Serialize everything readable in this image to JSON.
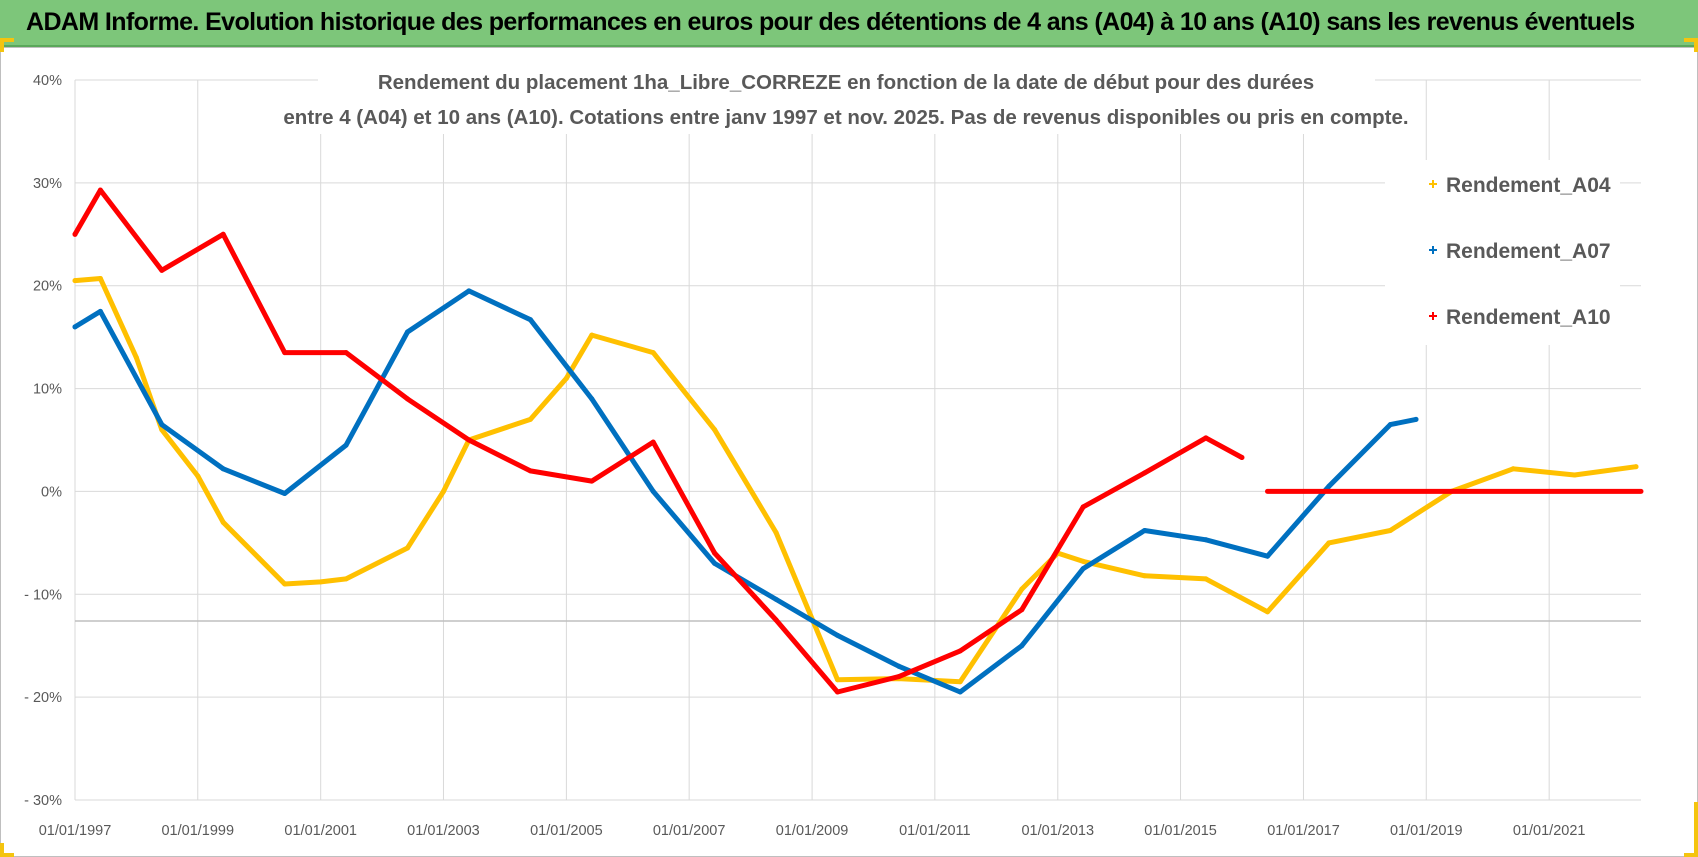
{
  "banner": {
    "title": "ADAM Informe. Evolution historique des performances en euros pour des détentions de 4 ans (A04) à 10 ans (A10) sans les revenus éventuels"
  },
  "colors": {
    "banner_bg": "#7dc67a",
    "A04": "#ffc000",
    "A07": "#0070c0",
    "A10": "#ff0000",
    "grid": "#d9d9d9",
    "accent_corners": "#f4c40f"
  },
  "chart_data": {
    "type": "line",
    "title_lines": [
      "Rendement du placement 1ha_Libre_CORREZE en fonction de la date de début pour des durées",
      "entre 4 (A04) et 10 ans (A10). Cotations entre janv 1997 et nov. 2025. Pas de revenus disponibles ou pris en compte."
    ],
    "xlabel": "",
    "ylabel": "",
    "x_range": [
      "1997-01-01",
      "2022-07-01"
    ],
    "x_ticks": [
      "01/01/1997",
      "01/01/1999",
      "01/01/2001",
      "01/01/2003",
      "01/01/2005",
      "01/01/2007",
      "01/01/2009",
      "01/01/2011",
      "01/01/2013",
      "01/01/2015",
      "01/01/2017",
      "01/01/2019",
      "01/01/2021"
    ],
    "y_range": [
      -30,
      40
    ],
    "y_ticks": [
      {
        "value": 40,
        "label": "40%"
      },
      {
        "value": 30,
        "label": "30%"
      },
      {
        "value": 20,
        "label": "20%"
      },
      {
        "value": 10,
        "label": "10%"
      },
      {
        "value": 0,
        "label": "0%"
      },
      {
        "value": -10,
        "label": "- 10%"
      },
      {
        "value": -20,
        "label": "- 20%"
      },
      {
        "value": -30,
        "label": "- 30%"
      }
    ],
    "grid": true,
    "legend_position": "top-right",
    "series": [
      {
        "name": "Rendement_A04",
        "points": [
          [
            "1997-01-01",
            20.5
          ],
          [
            "1997-06-01",
            20.7
          ],
          [
            "1998-01-01",
            13.0
          ],
          [
            "1998-06-01",
            6.0
          ],
          [
            "1999-01-01",
            1.5
          ],
          [
            "1999-06-01",
            -3.0
          ],
          [
            "2000-01-01",
            -6.5
          ],
          [
            "2000-06-01",
            -9.0
          ],
          [
            "2001-01-01",
            -8.8
          ],
          [
            "2001-06-01",
            -8.5
          ],
          [
            "2002-06-01",
            -5.5
          ],
          [
            "2003-01-01",
            0.0
          ],
          [
            "2003-06-01",
            5.0
          ],
          [
            "2004-06-01",
            7.0
          ],
          [
            "2005-01-01",
            11.0
          ],
          [
            "2005-06-01",
            15.2
          ],
          [
            "2006-06-01",
            13.5
          ],
          [
            "2007-06-01",
            6.0
          ],
          [
            "2008-06-01",
            -4.0
          ],
          [
            "2009-06-01",
            -18.3
          ],
          [
            "2010-06-01",
            -18.2
          ],
          [
            "2011-06-01",
            -18.5
          ],
          [
            "2012-06-01",
            -9.5
          ],
          [
            "2013-01-01",
            -6.0
          ],
          [
            "2013-06-01",
            -6.8
          ],
          [
            "2014-06-01",
            -8.2
          ],
          [
            "2015-06-01",
            -8.5
          ],
          [
            "2016-06-01",
            -11.7
          ],
          [
            "2017-06-01",
            -5.0
          ],
          [
            "2018-06-01",
            -3.8
          ],
          [
            "2019-06-01",
            0.0
          ],
          [
            "2020-06-01",
            2.2
          ],
          [
            "2021-06-01",
            1.6
          ],
          [
            "2022-06-01",
            2.4
          ]
        ]
      },
      {
        "name": "Rendement_A07",
        "points": [
          [
            "1997-01-01",
            16.0
          ],
          [
            "1997-06-01",
            17.5
          ],
          [
            "1998-06-01",
            6.5
          ],
          [
            "1999-06-01",
            2.2
          ],
          [
            "2000-06-01",
            -0.2
          ],
          [
            "2001-06-01",
            4.5
          ],
          [
            "2002-06-01",
            15.5
          ],
          [
            "2003-06-01",
            19.5
          ],
          [
            "2004-06-01",
            16.7
          ],
          [
            "2005-06-01",
            9.0
          ],
          [
            "2006-06-01",
            0.0
          ],
          [
            "2007-06-01",
            -7.0
          ],
          [
            "2008-06-01",
            -10.5
          ],
          [
            "2009-06-01",
            -14.0
          ],
          [
            "2010-06-01",
            -17.0
          ],
          [
            "2011-06-01",
            -19.5
          ],
          [
            "2012-06-01",
            -15.0
          ],
          [
            "2013-06-01",
            -7.5
          ],
          [
            "2014-06-01",
            -3.8
          ],
          [
            "2015-06-01",
            -4.7
          ],
          [
            "2016-06-01",
            -6.3
          ],
          [
            "2017-06-01",
            0.5
          ],
          [
            "2018-06-01",
            6.5
          ],
          [
            "2018-11-01",
            7.0
          ]
        ]
      },
      {
        "name": "Rendement_A10",
        "points": [
          [
            "1997-01-01",
            25.0
          ],
          [
            "1997-06-01",
            29.3
          ],
          [
            "1998-06-01",
            21.5
          ],
          [
            "1999-06-01",
            25.0
          ],
          [
            "2000-06-01",
            13.5
          ],
          [
            "2001-06-01",
            13.5
          ],
          [
            "2002-06-01",
            9.0
          ],
          [
            "2003-06-01",
            5.0
          ],
          [
            "2004-06-01",
            2.0
          ],
          [
            "2005-06-01",
            1.0
          ],
          [
            "2006-06-01",
            4.8
          ],
          [
            "2007-06-01",
            -6.0
          ],
          [
            "2008-06-01",
            -12.5
          ],
          [
            "2009-06-01",
            -19.5
          ],
          [
            "2010-06-01",
            -18.0
          ],
          [
            "2011-06-01",
            -15.5
          ],
          [
            "2012-06-01",
            -11.5
          ],
          [
            "2013-06-01",
            -1.5
          ],
          [
            "2014-06-01",
            1.8
          ],
          [
            "2015-06-01",
            5.2
          ],
          [
            "2016-01-01",
            3.3
          ]
        ],
        "flat_segment": [
          [
            "2016-06-01",
            0.0
          ],
          [
            "2022-07-01",
            0.0
          ]
        ]
      }
    ]
  }
}
